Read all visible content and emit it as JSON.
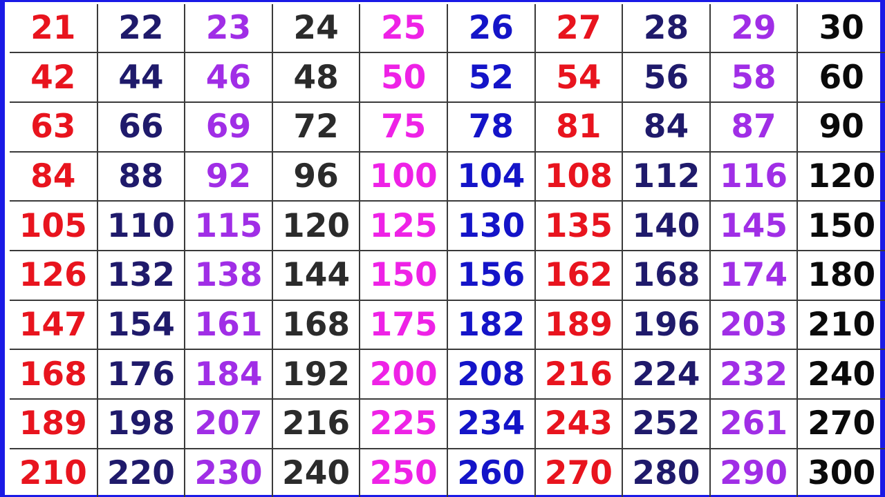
{
  "table": {
    "column_colors": [
      "#e8141e",
      "#1f1a6b",
      "#a02ee6",
      "#2b2b2b",
      "#ee22e6",
      "#1414c8",
      "#e8141e",
      "#1f1a6b",
      "#a02ee6",
      "#0a0a0a"
    ],
    "rows": [
      [
        "21",
        "22",
        "23",
        "24",
        "25",
        "26",
        "27",
        "28",
        "29",
        "30"
      ],
      [
        "42",
        "44",
        "46",
        "48",
        "50",
        "52",
        "54",
        "56",
        "58",
        "60"
      ],
      [
        "63",
        "66",
        "69",
        "72",
        "75",
        "78",
        "81",
        "84",
        "87",
        "90"
      ],
      [
        "84",
        "88",
        "92",
        "96",
        "100",
        "104",
        "108",
        "112",
        "116",
        "120"
      ],
      [
        "105",
        "110",
        "115",
        "120",
        "125",
        "130",
        "135",
        "140",
        "145",
        "150"
      ],
      [
        "126",
        "132",
        "138",
        "144",
        "150",
        "156",
        "162",
        "168",
        "174",
        "180"
      ],
      [
        "147",
        "154",
        "161",
        "168",
        "175",
        "182",
        "189",
        "196",
        "203",
        "210"
      ],
      [
        "168",
        "176",
        "184",
        "192",
        "200",
        "208",
        "216",
        "224",
        "232",
        "240"
      ],
      [
        "189",
        "198",
        "207",
        "216",
        "225",
        "234",
        "243",
        "252",
        "261",
        "270"
      ],
      [
        "210",
        "220",
        "230",
        "240",
        "250",
        "260",
        "270",
        "280",
        "290",
        "300"
      ]
    ]
  }
}
